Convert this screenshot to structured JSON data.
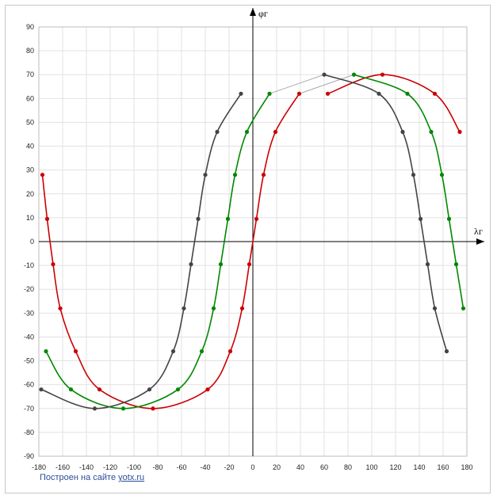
{
  "chart_data": {
    "type": "line",
    "title": "",
    "xlabel": "λг",
    "ylabel": "φг",
    "xlim": [
      -180,
      180
    ],
    "ylim": [
      -90,
      90
    ],
    "x_ticks": [
      -180,
      -160,
      -140,
      -120,
      -100,
      -80,
      -60,
      -40,
      -20,
      0,
      20,
      40,
      60,
      80,
      100,
      120,
      140,
      160,
      180
    ],
    "y_ticks": [
      -90,
      -80,
      -70,
      -60,
      -50,
      -40,
      -30,
      -20,
      -10,
      0,
      10,
      20,
      30,
      40,
      50,
      60,
      70,
      80,
      90
    ],
    "grid": true,
    "series": [
      {
        "color": "#cc0000",
        "points": [
          [
            -177,
            28
          ],
          [
            -173,
            9.5
          ],
          [
            -168,
            -9.5
          ],
          [
            -162,
            -28
          ],
          [
            -149,
            -46
          ],
          [
            -129,
            -62
          ],
          [
            -84,
            -70
          ],
          [
            -38,
            -62
          ],
          [
            -19,
            -46
          ],
          [
            -9,
            -28
          ],
          [
            -3,
            -9.5
          ],
          [
            3,
            9.5
          ],
          [
            9,
            28
          ],
          [
            19,
            46
          ],
          [
            39,
            62
          ]
        ]
      },
      {
        "color": "#cc0000",
        "points": [
          [
            63,
            62
          ],
          [
            109,
            70
          ],
          [
            153,
            62
          ],
          [
            174,
            46
          ]
        ]
      },
      {
        "color": "#008800",
        "points": [
          [
            -174,
            -46
          ],
          [
            -153,
            -62
          ],
          [
            -109,
            -70
          ],
          [
            -63,
            -62
          ],
          [
            -43,
            -46
          ],
          [
            -33,
            -28
          ],
          [
            -27,
            -9.5
          ],
          [
            -21,
            9.5
          ],
          [
            -15,
            28
          ],
          [
            -5,
            46
          ],
          [
            14,
            62
          ]
        ]
      },
      {
        "color": "#008800",
        "points": [
          [
            85,
            70
          ],
          [
            130,
            62
          ],
          [
            150,
            46
          ],
          [
            159,
            28
          ],
          [
            165,
            9.5
          ],
          [
            171,
            -9.5
          ],
          [
            177,
            -28
          ]
        ]
      },
      {
        "color": "#444444",
        "points": [
          [
            -178,
            -62
          ],
          [
            -133,
            -70
          ],
          [
            -87,
            -62
          ],
          [
            -67,
            -46
          ],
          [
            -58,
            -28
          ],
          [
            -52,
            -9.5
          ],
          [
            -46,
            9.5
          ],
          [
            -40,
            28
          ],
          [
            -30,
            46
          ],
          [
            -10,
            62
          ]
        ]
      },
      {
        "color": "#444444",
        "points": [
          [
            60,
            70
          ],
          [
            106,
            62
          ],
          [
            126,
            46
          ],
          [
            135,
            28
          ],
          [
            141,
            9.5
          ],
          [
            147,
            -9.5
          ],
          [
            153,
            -28
          ],
          [
            163,
            -46
          ]
        ]
      }
    ],
    "connectors": [
      {
        "color": "#aaaaaa",
        "points": [
          [
            14,
            62
          ],
          [
            60,
            70
          ]
        ]
      },
      {
        "color": "#aaaaaa",
        "points": [
          [
            39,
            62
          ],
          [
            85,
            70
          ]
        ]
      }
    ]
  },
  "credit": {
    "text": "Построен на сайте ",
    "link": "yotx.ru"
  }
}
